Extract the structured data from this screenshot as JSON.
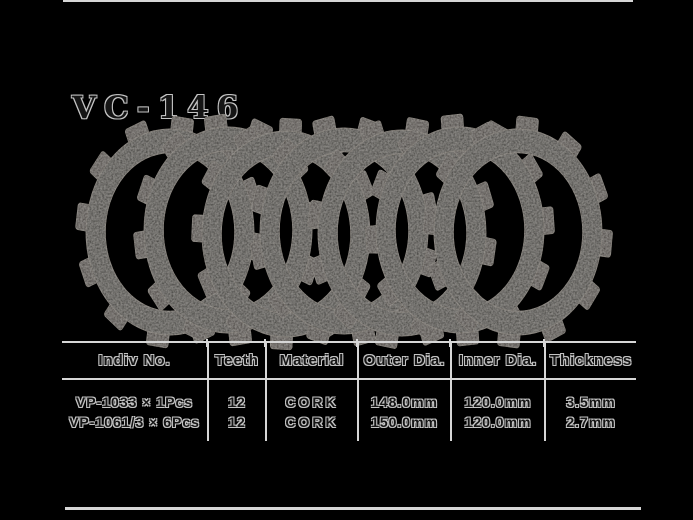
{
  "title": "VC-146",
  "page": {
    "background": "#000000",
    "rule_color": "#d6d6d6"
  },
  "illustration": {
    "description": "seven cork clutch friction plates overlapped in a fan from left to right",
    "plate_count": 7,
    "teeth_per_plate": 12,
    "plate_color": "#33302d",
    "tab_color": "#3a3632",
    "edge_color": "#645e57"
  },
  "table": {
    "headers": [
      "Indiv No.",
      "Teeth",
      "Material",
      "Outer Dia.",
      "Inner Dia.",
      "Thickness"
    ],
    "rows": [
      [
        "VP-1033 × 1Pcs",
        "12",
        "CORK",
        "148.0mm",
        "120.0mm",
        "3.5mm"
      ],
      [
        "VP-1061/3 × 6Pcs",
        "12",
        "CORK",
        "150.0mm",
        "120.0mm",
        "2.7mm"
      ]
    ]
  }
}
